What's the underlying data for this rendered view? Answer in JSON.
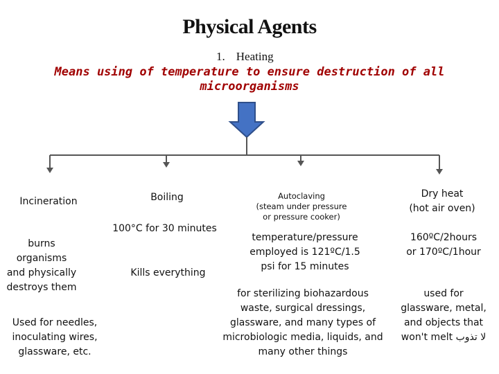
{
  "title": "Physical Agents",
  "subheading": {
    "number": "1.",
    "text": "Heating"
  },
  "definition": {
    "line1": "Means using of temperature to ensure destruction of all",
    "line2": "microorganisms"
  },
  "colors": {
    "definition": "#a00000",
    "arrow": "#4472c4",
    "arrow_border": "#2f4f8a",
    "lines": "#555555"
  },
  "branches": [
    {
      "name": "Incineration",
      "details": [
        "burns",
        "organisms",
        "and physically",
        "destroys them"
      ],
      "uses": [
        "Used for needles,",
        "inoculating wires,",
        "glassware, etc."
      ]
    },
    {
      "name": "Boiling",
      "condition": "100°C for 30 minutes",
      "effect": "Kills everything"
    },
    {
      "name": "Autoclaving",
      "name_note": [
        "(steam under pressure",
        "or pressure cooker)"
      ],
      "condition": [
        "temperature/pressure",
        "employed is 121ºC/1.5",
        "psi for 15 minutes"
      ],
      "uses": [
        "for sterilizing biohazardous",
        "waste, surgical dressings,",
        "glassware, and many types of",
        "microbiologic media, liquids, and",
        "many other things"
      ]
    },
    {
      "name": [
        "Dry heat",
        "(hot air oven)"
      ],
      "condition": [
        "160ºC/2hours",
        "or 170ºC/1hour"
      ],
      "uses": [
        "used for",
        "glassware, metal,",
        "and objects that",
        "won't melt لا تذوب"
      ]
    }
  ]
}
